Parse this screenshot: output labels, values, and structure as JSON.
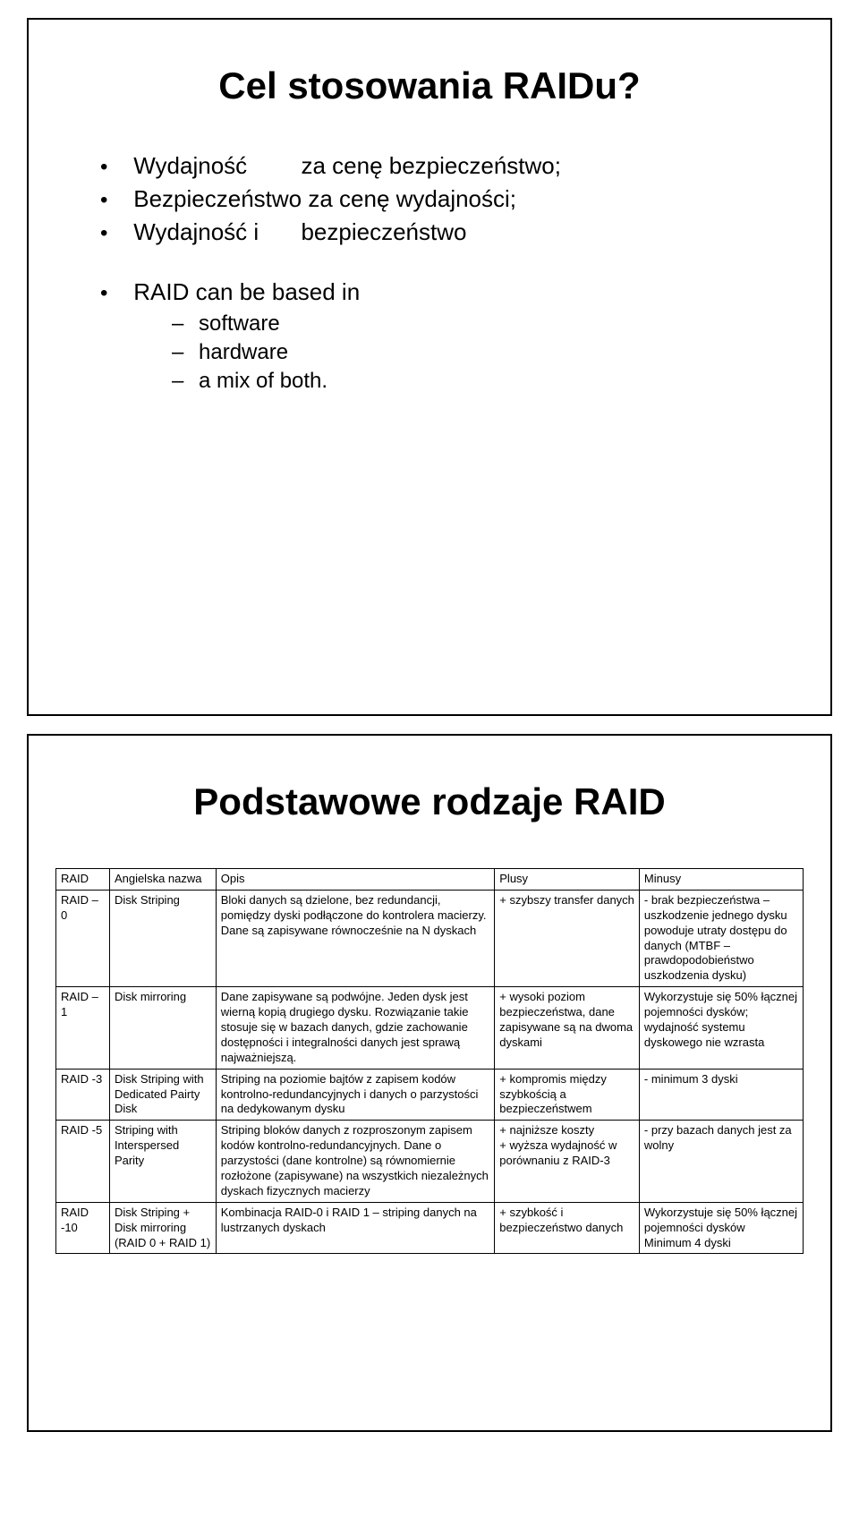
{
  "slide1": {
    "title": "Cel stosowania RAIDu?",
    "bullets": [
      {
        "label": "Wydajność",
        "rest": "za cenę bezpieczeństwo;"
      },
      {
        "label": "",
        "rest": "Bezpieczeństwo za cenę wydajności;"
      },
      {
        "label": "Wydajność i",
        "rest": "bezpieczeństwo"
      }
    ],
    "second_block_intro": "RAID can be based in",
    "sub_items": [
      "software",
      "hardware",
      "a mix of both."
    ]
  },
  "slide2": {
    "title": "Podstawowe rodzaje RAID",
    "headers": [
      "RAID",
      "Angielska nazwa",
      "Opis",
      "Plusy",
      "Minusy"
    ],
    "rows": [
      {
        "level": "RAID – 0",
        "name": "Disk Striping",
        "desc": "Bloki danych są dzielone, bez redundancji, pomiędzy dyski podłączone do kontrolera macierzy. Dane są zapisywane równocześnie na N dyskach",
        "plus": "+ szybszy transfer danych",
        "minus": "- brak bezpieczeństwa – uszkodzenie jednego dysku powoduje utraty dostępu do danych (MTBF – prawdopodobieństwo uszkodzenia dysku)"
      },
      {
        "level": "RAID – 1",
        "name": "Disk mirroring",
        "desc": "Dane zapisywane są podwójne. Jeden dysk jest wierną kopią drugiego dysku. Rozwiązanie takie stosuje się w bazach danych, gdzie zachowanie dostępności i integralności danych jest sprawą najważniejszą.",
        "plus": "+ wysoki poziom bezpieczeństwa, dane zapisywane są na dwoma dyskami",
        "minus": "Wykorzystuje się 50% łącznej pojemności dysków;\nwydajność systemu dyskowego nie wzrasta"
      },
      {
        "level": "RAID -3",
        "name": "Disk Striping with Dedicated Pairty Disk",
        "desc": "Striping na poziomie bajtów z zapisem kodów kontrolno-redundancyjnych i danych o parzystości na dedykowanym dysku",
        "plus": "+ kompromis między szybkością a bezpieczeństwem",
        "minus": "- minimum 3 dyski"
      },
      {
        "level": "RAID -5",
        "name": "Striping with Interspersed Parity",
        "desc": "Striping bloków danych z rozproszonym zapisem kodów kontrolno-redundancyjnych. Dane o parzystości (dane kontrolne) są równomiernie rozłożone (zapisywane)  na wszystkich niezależnych dyskach fizycznych macierzy",
        "plus": "+ najniższe koszty\n+ wyższa wydajność w porównaniu z RAID-3",
        "minus": "- przy bazach danych jest za wolny"
      },
      {
        "level": "RAID -10",
        "name": "Disk Striping + Disk mirroring (RAID 0 + RAID 1)",
        "desc": "Kombinacja RAID-0 i RAID 1 – striping danych na lustrzanych dyskach",
        "plus": "+ szybkość i bezpieczeństwo danych",
        "minus": "Wykorzystuje się 50% łącznej pojemności dysków\nMinimum 4 dyski"
      }
    ]
  }
}
